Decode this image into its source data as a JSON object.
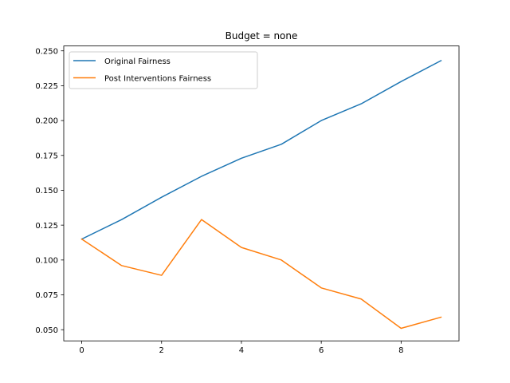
{
  "chart_data": {
    "type": "line",
    "title": "Budget = none",
    "xlabel": "",
    "ylabel": "",
    "x": [
      0,
      1,
      2,
      3,
      4,
      5,
      6,
      7,
      8,
      9
    ],
    "xlim": [
      -0.45,
      9.45
    ],
    "ylim": [
      0.042,
      0.2535
    ],
    "xticks": [
      0,
      2,
      4,
      6,
      8
    ],
    "xtick_labels": [
      "0",
      "2",
      "4",
      "6",
      "8"
    ],
    "yticks": [
      0.05,
      0.075,
      0.1,
      0.125,
      0.15,
      0.175,
      0.2,
      0.225,
      0.25
    ],
    "ytick_labels": [
      "0.050",
      "0.075",
      "0.100",
      "0.125",
      "0.150",
      "0.175",
      "0.200",
      "0.225",
      "0.250"
    ],
    "grid": false,
    "legend_position": "top-left",
    "series": [
      {
        "name": "Original Fairness",
        "color": "#1f77b4",
        "values": [
          0.115,
          0.129,
          0.145,
          0.16,
          0.173,
          0.183,
          0.2,
          0.212,
          0.228,
          0.243
        ]
      },
      {
        "name": "Post Interventions Fairness",
        "color": "#ff7f0e",
        "values": [
          0.115,
          0.096,
          0.089,
          0.129,
          0.109,
          0.1,
          0.08,
          0.072,
          0.051,
          0.059
        ]
      }
    ]
  }
}
